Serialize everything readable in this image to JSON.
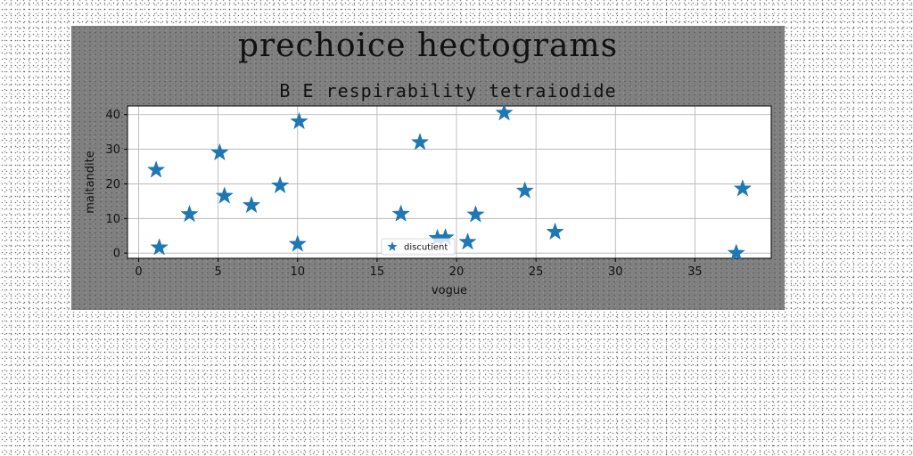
{
  "figure_title": "prechoice hectograms",
  "chart_data": {
    "type": "scatter",
    "title": "B E respirability tetraiodide",
    "xlabel": "vogue",
    "ylabel": "maitandite",
    "xlim": [
      -0.7,
      39.8
    ],
    "ylim": [
      -1.5,
      42.5
    ],
    "xticks": [
      0,
      5,
      10,
      15,
      20,
      25,
      30,
      35
    ],
    "xtick_labels": [
      "0",
      "5",
      "10",
      "15",
      "20",
      "25",
      "30",
      "35"
    ],
    "yticks": [
      0,
      10,
      20,
      30,
      40
    ],
    "ytick_labels": [
      "0",
      "10",
      "20",
      "30",
      "40"
    ],
    "grid": true,
    "legend": {
      "position": "lower-center",
      "entries": [
        "discutient"
      ]
    },
    "series": [
      {
        "name": "discutient",
        "marker": "star",
        "color": "#1f77b4",
        "x": [
          1.1,
          1.3,
          3.2,
          5.1,
          5.4,
          7.1,
          8.9,
          10.0,
          10.1,
          16.5,
          17.7,
          18.8,
          19.3,
          20.7,
          21.2,
          23.0,
          24.3,
          26.2,
          37.6,
          38.0
        ],
        "y": [
          24.0,
          1.6,
          11.2,
          29.0,
          16.5,
          13.8,
          19.5,
          2.6,
          38.0,
          11.3,
          32.0,
          4.3,
          4.5,
          3.2,
          11.1,
          40.5,
          18.0,
          6.1,
          0.0,
          18.6
        ]
      }
    ]
  }
}
